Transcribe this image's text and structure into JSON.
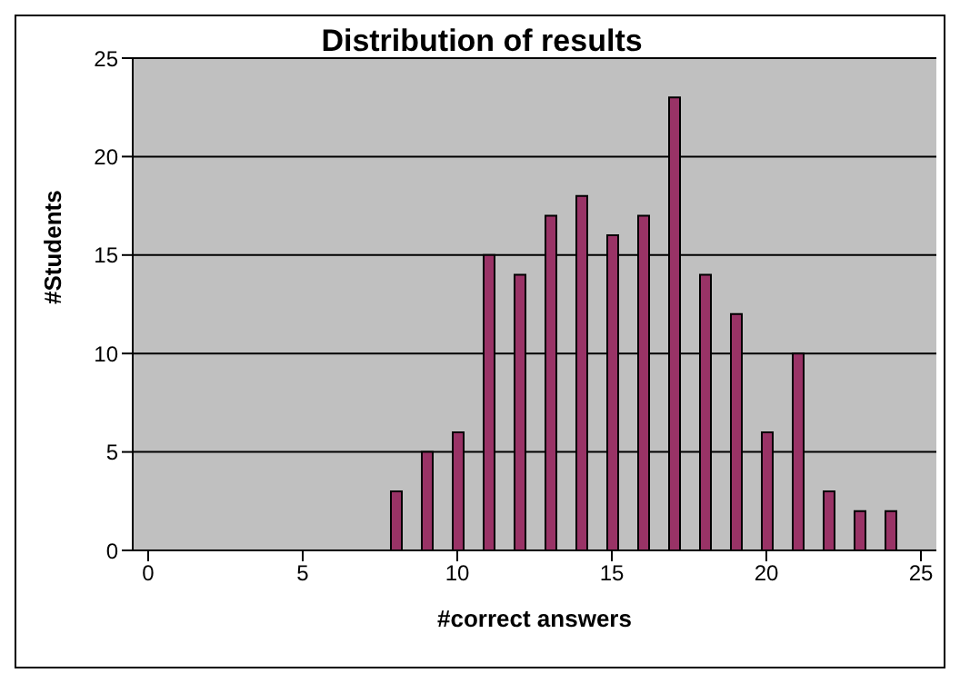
{
  "chart_data": {
    "type": "bar",
    "title": "Distribution of results",
    "xlabel": "#correct answers",
    "ylabel": "#Students",
    "x": [
      8,
      9,
      10,
      11,
      12,
      13,
      14,
      15,
      16,
      17,
      18,
      19,
      20,
      21,
      22,
      23,
      24
    ],
    "values": [
      3,
      5,
      6,
      15,
      14,
      17,
      18,
      16,
      17,
      23,
      14,
      12,
      6,
      10,
      3,
      2,
      2
    ],
    "color": "#993366",
    "xlim": [
      -0.5,
      25.5
    ],
    "xticks": [
      0,
      5,
      10,
      15,
      20,
      25
    ],
    "ylim": [
      0,
      25
    ],
    "yticks": [
      0,
      5,
      10,
      15,
      20,
      25
    ],
    "grid": "y",
    "legend": false
  }
}
